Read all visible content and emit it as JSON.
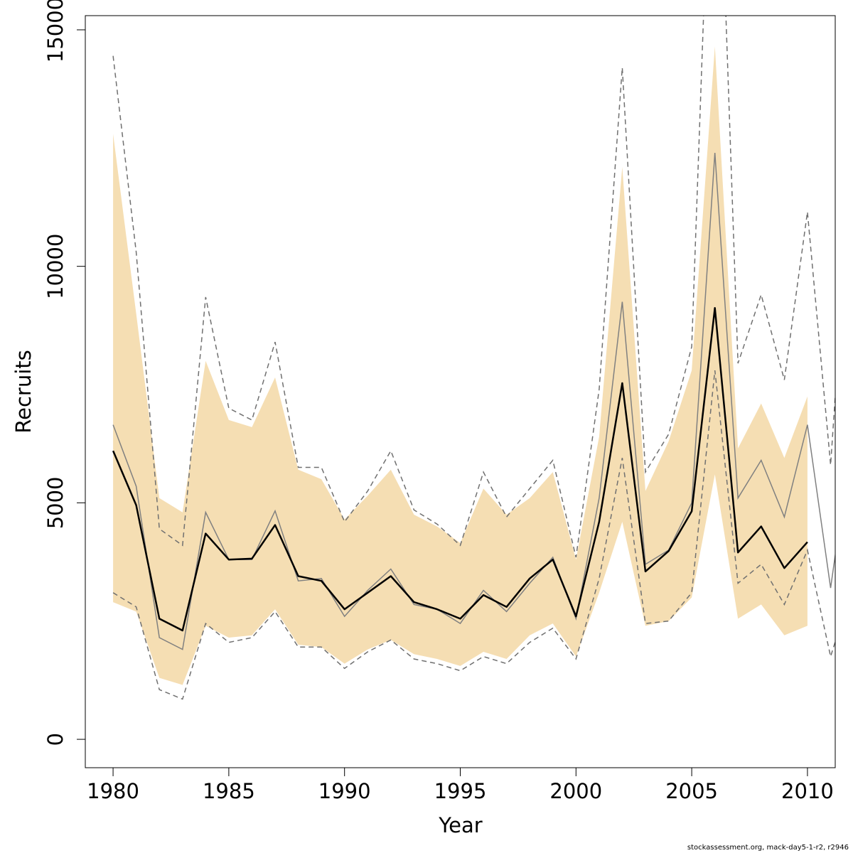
{
  "chart_data": {
    "type": "line",
    "xlabel": "Year",
    "ylabel": "Recruits",
    "xlim": [
      1978.8,
      2011.2
    ],
    "ylim": [
      -600,
      15300
    ],
    "x_ticks": [
      1980,
      1985,
      1990,
      1995,
      2000,
      2005,
      2010
    ],
    "y_ticks": [
      0,
      5000,
      10000,
      15000
    ],
    "grid": false,
    "legend": "none",
    "colors": {
      "band": "#f5deb3",
      "main_line": "#000000",
      "alt_line": "#808080",
      "alt_bounds": "#707070"
    },
    "band": {
      "x": [
        1980,
        1981,
        1982,
        1983,
        1984,
        1985,
        1986,
        1987,
        1988,
        1989,
        1990,
        1991,
        1992,
        1993,
        1994,
        1995,
        1996,
        1997,
        1998,
        1999,
        2000,
        2001,
        2002,
        2003,
        2004,
        2005,
        2006,
        2007,
        2008,
        2009,
        2010
      ],
      "upper": [
        12800,
        9000,
        5100,
        4800,
        8000,
        6750,
        6600,
        7650,
        5700,
        5500,
        4650,
        5150,
        5700,
        4750,
        4500,
        4150,
        5300,
        4750,
        5100,
        5650,
        3800,
        6400,
        12100,
        5250,
        6300,
        7800,
        14650,
        6150,
        7100,
        5950,
        7250
      ],
      "lower": [
        2900,
        2700,
        1300,
        1150,
        2400,
        2150,
        2200,
        2750,
        2000,
        1950,
        1600,
        1900,
        2100,
        1800,
        1700,
        1550,
        1850,
        1700,
        2200,
        2450,
        1750,
        3100,
        4600,
        2400,
        2500,
        3000,
        5600,
        2550,
        2850,
        2200,
        2400
      ]
    },
    "series": [
      {
        "x": [
          1980,
          1981,
          1982,
          1983,
          1984,
          1985,
          1986,
          1987,
          1988,
          1989,
          1990,
          1991,
          1992,
          1993,
          1994,
          1995,
          1996,
          1997,
          1998,
          1999,
          2000,
          2001,
          2002,
          2003,
          2004,
          2005,
          2006,
          2007,
          2008,
          2009,
          2010
        ],
        "values": [
          6100,
          4950,
          2550,
          2300,
          4350,
          3800,
          3820,
          4530,
          3450,
          3350,
          2750,
          3100,
          3450,
          2900,
          2750,
          2550,
          3050,
          2800,
          3400,
          3800,
          2600,
          4600,
          7530,
          3550,
          3980,
          4820,
          9120,
          3950,
          4500,
          3620,
          4170
        ]
      },
      {
        "x": [
          1980,
          1981,
          1982,
          1983,
          1984,
          1985,
          1986,
          1987,
          1988,
          1989,
          1990,
          1991,
          1992,
          1993,
          1994,
          1995,
          1996,
          1997,
          1998,
          1999,
          2000,
          2001,
          2002,
          2003,
          2004,
          2005,
          2006,
          2007,
          2008,
          2009,
          2010,
          2011,
          2012
        ],
        "values": [
          6650,
          5350,
          2150,
          1900,
          4800,
          3800,
          3800,
          4830,
          3350,
          3400,
          2600,
          3150,
          3600,
          2850,
          2750,
          2450,
          3150,
          2700,
          3300,
          3850,
          2550,
          5100,
          9250,
          3700,
          4000,
          5000,
          12400,
          5100,
          5900,
          4700,
          6650,
          3200,
          6650
        ],
        "upper": [
          14450,
          10300,
          4450,
          4100,
          9350,
          7000,
          6750,
          8400,
          5750,
          5750,
          4600,
          5250,
          6100,
          4850,
          4550,
          4100,
          5650,
          4700,
          5300,
          5900,
          3850,
          7400,
          14200,
          5650,
          6450,
          8300,
          22000,
          7950,
          9400,
          7600,
          11150,
          5800,
          13000
        ],
        "lower": [
          3100,
          2800,
          1050,
          850,
          2450,
          2050,
          2150,
          2700,
          1950,
          1950,
          1500,
          1850,
          2100,
          1700,
          1600,
          1450,
          1750,
          1600,
          2050,
          2350,
          1700,
          3400,
          5950,
          2450,
          2500,
          3100,
          7800,
          3300,
          3700,
          2850,
          4000,
          1750,
          3300
        ]
      }
    ]
  },
  "footer": {
    "credit": "stockassessment.org, mack-day5-1-r2, r2946"
  }
}
